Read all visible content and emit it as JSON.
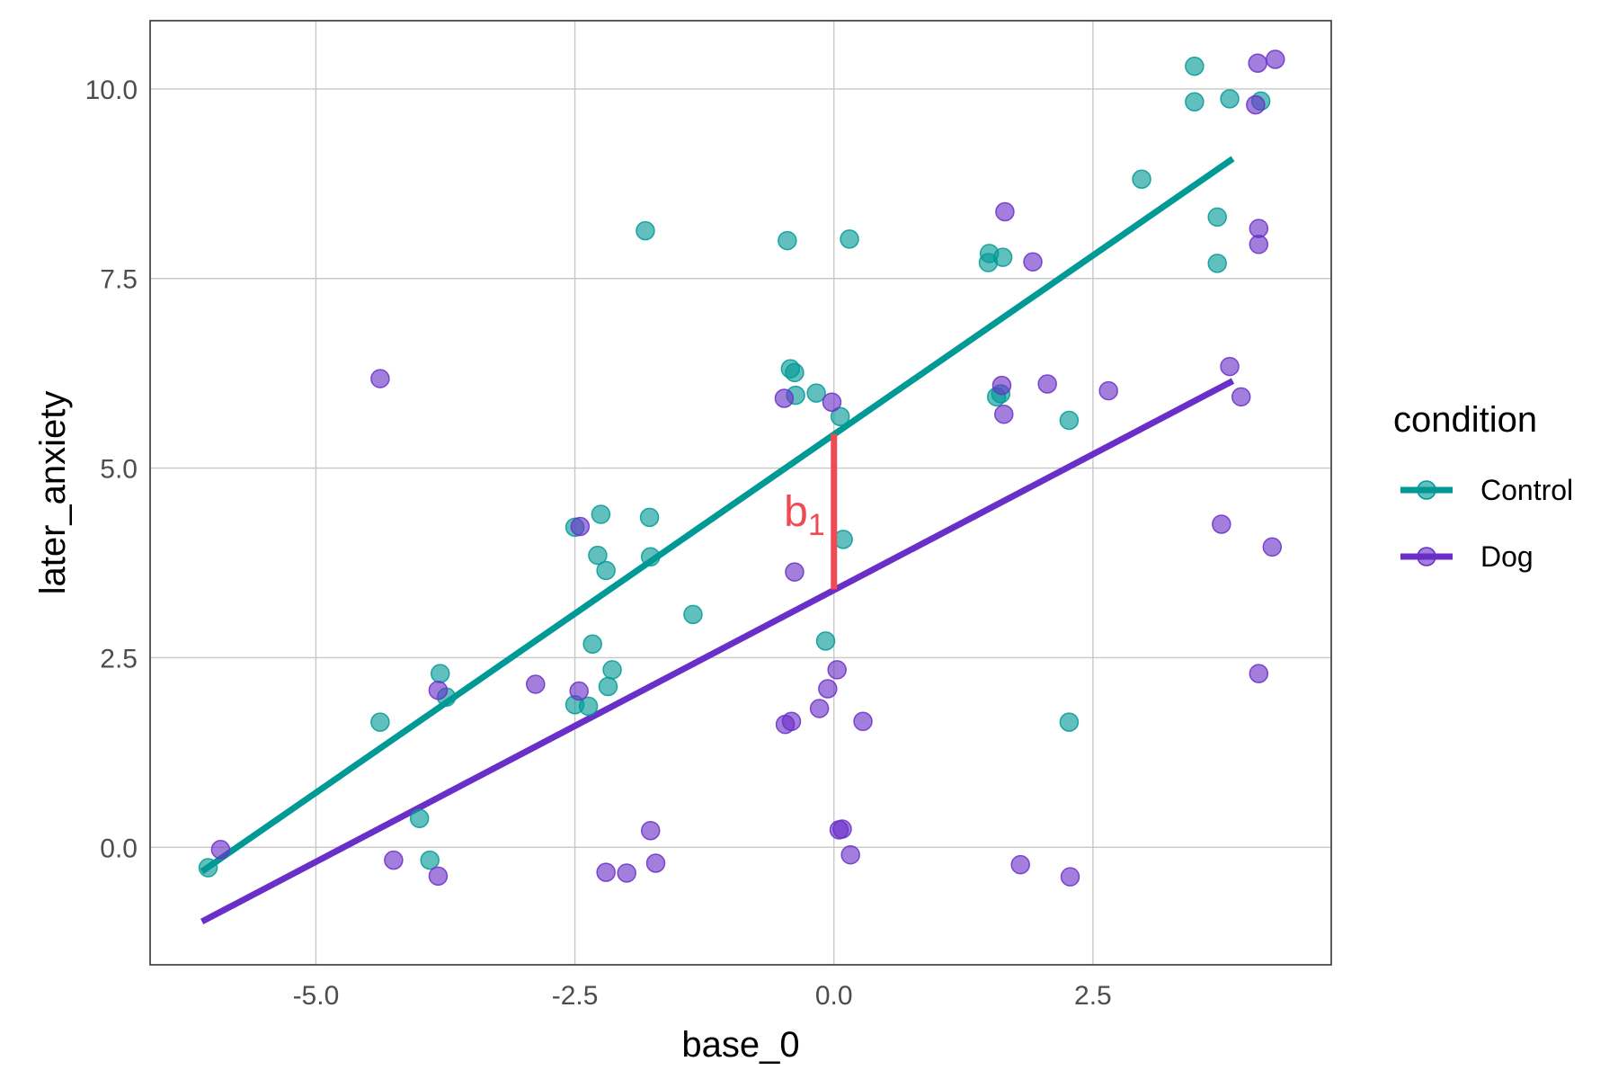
{
  "chart_data": {
    "type": "scatter",
    "xlabel": "base_0",
    "ylabel": "later_anxiety",
    "xlim": [
      -6.6,
      4.8
    ],
    "ylim": [
      -1.55,
      10.9
    ],
    "x_ticks": [
      -5.0,
      -2.5,
      0.0,
      2.5
    ],
    "x_tick_labels": [
      "-5.0",
      "-2.5",
      "0.0",
      "2.5"
    ],
    "y_ticks": [
      0.0,
      2.5,
      5.0,
      7.5,
      10.0
    ],
    "y_tick_labels": [
      "0.0",
      "2.5",
      "5.0",
      "7.5",
      "10.0"
    ],
    "grid": true,
    "legend": {
      "title": "condition",
      "position": "right"
    },
    "annotation": {
      "text": "b",
      "subscript": "1",
      "x": 0.0,
      "y_from": 3.4,
      "y_to": 5.45,
      "color": "#f04b55"
    },
    "series": [
      {
        "name": "Control",
        "color": "#009a96",
        "line": {
          "x": [
            -6.1,
            3.85
          ],
          "y": [
            -0.32,
            9.08
          ]
        },
        "points": [
          [
            -6.04,
            -0.27
          ],
          [
            -4.38,
            1.65
          ],
          [
            -3.8,
            2.29
          ],
          [
            -3.74,
            1.98
          ],
          [
            -4.0,
            0.38
          ],
          [
            -3.9,
            -0.17
          ],
          [
            -2.5,
            4.22
          ],
          [
            -2.25,
            4.39
          ],
          [
            -1.78,
            4.35
          ],
          [
            -2.28,
            3.85
          ],
          [
            -2.2,
            3.65
          ],
          [
            -1.77,
            3.83
          ],
          [
            -2.33,
            2.68
          ],
          [
            -2.14,
            2.34
          ],
          [
            -2.18,
            2.12
          ],
          [
            -2.5,
            1.88
          ],
          [
            -2.37,
            1.86
          ],
          [
            -1.36,
            3.07
          ],
          [
            -1.82,
            8.13
          ],
          [
            -0.45,
            8.0
          ],
          [
            0.15,
            8.02
          ],
          [
            -0.42,
            6.31
          ],
          [
            -0.38,
            6.26
          ],
          [
            -0.37,
            5.96
          ],
          [
            -0.17,
            5.99
          ],
          [
            0.06,
            5.68
          ],
          [
            0.09,
            4.06
          ],
          [
            -0.08,
            2.72
          ],
          [
            1.5,
            7.83
          ],
          [
            1.49,
            7.71
          ],
          [
            1.63,
            7.78
          ],
          [
            1.57,
            5.94
          ],
          [
            1.61,
            5.98
          ],
          [
            2.27,
            5.63
          ],
          [
            2.97,
            8.81
          ],
          [
            3.48,
            10.3
          ],
          [
            3.48,
            9.83
          ],
          [
            3.82,
            9.87
          ],
          [
            4.12,
            9.84
          ],
          [
            3.7,
            8.31
          ],
          [
            3.7,
            7.7
          ],
          [
            2.27,
            1.65
          ]
        ]
      },
      {
        "name": "Dog",
        "color": "#6a2fc8",
        "line": {
          "x": [
            -6.1,
            3.85
          ],
          "y": [
            -0.98,
            6.15
          ]
        },
        "points": [
          [
            -5.92,
            -0.03
          ],
          [
            -4.38,
            6.18
          ],
          [
            -4.25,
            -0.17
          ],
          [
            -3.82,
            2.07
          ],
          [
            -3.82,
            -0.38
          ],
          [
            -2.88,
            2.15
          ],
          [
            -2.46,
            2.06
          ],
          [
            -2.45,
            4.23
          ],
          [
            -2.2,
            -0.33
          ],
          [
            -2.0,
            -0.34
          ],
          [
            -1.77,
            0.22
          ],
          [
            -1.72,
            -0.21
          ],
          [
            -0.48,
            5.92
          ],
          [
            -0.47,
            1.62
          ],
          [
            -0.41,
            1.66
          ],
          [
            -0.38,
            3.63
          ],
          [
            -0.02,
            5.87
          ],
          [
            -0.14,
            1.83
          ],
          [
            -0.06,
            2.09
          ],
          [
            0.03,
            2.34
          ],
          [
            0.05,
            0.23
          ],
          [
            0.08,
            0.24
          ],
          [
            0.16,
            -0.1
          ],
          [
            0.28,
            1.66
          ],
          [
            1.62,
            6.09
          ],
          [
            1.64,
            5.71
          ],
          [
            1.65,
            8.38
          ],
          [
            1.92,
            7.72
          ],
          [
            2.06,
            6.11
          ],
          [
            2.65,
            6.02
          ],
          [
            1.8,
            -0.23
          ],
          [
            2.28,
            -0.39
          ],
          [
            3.82,
            6.34
          ],
          [
            3.93,
            5.94
          ],
          [
            3.74,
            4.26
          ],
          [
            4.07,
            9.79
          ],
          [
            4.09,
            10.34
          ],
          [
            4.26,
            10.39
          ],
          [
            4.1,
            8.16
          ],
          [
            4.1,
            7.95
          ],
          [
            4.23,
            3.96
          ],
          [
            4.1,
            2.29
          ]
        ]
      }
    ]
  }
}
